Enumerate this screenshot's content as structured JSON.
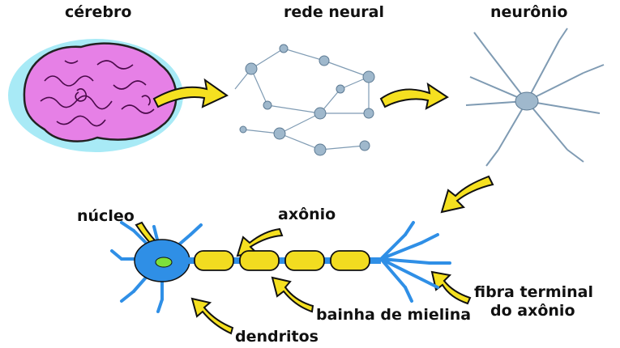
{
  "labels": {
    "brain": "cérebro",
    "network": "rede neural",
    "neuron": "neurônio",
    "nucleus": "núcleo",
    "axon": "axônio",
    "myelin": "bainha de mielina",
    "dendrites": "dendritos",
    "terminal_line1": "fibra terminal",
    "terminal_line2": "do axônio"
  },
  "colors": {
    "brain_fill": "#e680e6",
    "brain_halo": "#9ee8f5",
    "arrow_fill": "#f5e020",
    "neuron_blue": "#2f8fe6",
    "myelin_fill": "#f2dc20",
    "nucleus_fill": "#7de03a",
    "network_cell": "#9fb8cc"
  }
}
